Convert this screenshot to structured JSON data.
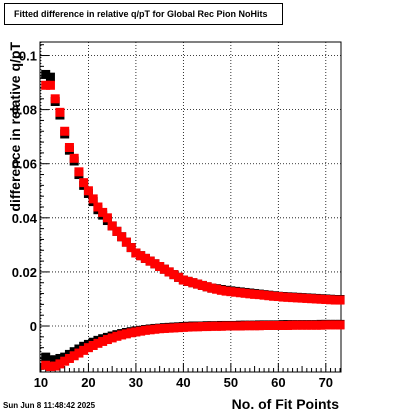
{
  "chart_data": {
    "type": "scatter",
    "title": "Fitted difference in relative q/pT for Global Rec Pion NoHits",
    "xlabel": "No. of Fit Points",
    "ylabel": "difference in relative q/pT",
    "xlim": [
      9.8,
      73.2
    ],
    "ylim": [
      -0.017,
      0.105
    ],
    "grid": true,
    "x_ticks": [
      10,
      20,
      30,
      40,
      50,
      60,
      70
    ],
    "x_tick_labels": [
      "10",
      "20",
      "30",
      "40",
      "50",
      "60",
      "70"
    ],
    "y_ticks": [
      0,
      0.02,
      0.04,
      0.06,
      0.08,
      0.1
    ],
    "y_tick_labels": [
      "0",
      "0.02",
      "0.04",
      "0.06",
      "0.08",
      "0.1"
    ],
    "series": [
      {
        "color": "#000000",
        "marker": "square",
        "x": [
          11,
          12,
          13,
          14,
          15,
          16,
          17,
          18,
          19,
          20,
          21,
          22,
          23,
          24,
          25,
          26,
          27,
          28,
          29,
          30,
          31,
          32,
          33,
          34,
          35,
          36,
          37,
          38,
          39,
          40,
          41,
          42,
          43,
          44,
          45,
          46,
          47,
          48,
          49,
          50,
          51,
          52,
          53,
          54,
          55,
          56,
          57,
          58,
          59,
          60,
          61,
          62,
          63,
          64,
          65,
          66,
          67,
          68,
          69,
          70,
          71,
          72,
          73
        ],
        "upper": [
          0.093,
          0.092,
          0.083,
          0.078,
          0.071,
          0.065,
          0.061,
          0.056,
          0.052,
          0.049,
          0.046,
          0.043,
          0.041,
          0.039,
          0.037,
          0.035,
          0.033,
          0.031,
          0.029,
          0.027,
          0.026,
          0.025,
          0.024,
          0.023,
          0.022,
          0.021,
          0.02,
          0.019,
          0.018,
          0.017,
          0.0165,
          0.016,
          0.0155,
          0.015,
          0.0145,
          0.014,
          0.0138,
          0.0135,
          0.0132,
          0.013,
          0.0128,
          0.0126,
          0.0124,
          0.0122,
          0.012,
          0.0118,
          0.0116,
          0.0114,
          0.0112,
          0.011,
          0.0109,
          0.0108,
          0.0107,
          0.0106,
          0.0105,
          0.0104,
          0.0103,
          0.0102,
          0.0101,
          0.01,
          0.0099,
          0.0098,
          0.0098
        ],
        "lower": [
          -0.0115,
          -0.0125,
          -0.0125,
          -0.012,
          -0.0115,
          -0.0105,
          -0.0095,
          -0.0085,
          -0.0075,
          -0.0068,
          -0.006,
          -0.0053,
          -0.0047,
          -0.0042,
          -0.0037,
          -0.0032,
          -0.0028,
          -0.0024,
          -0.0021,
          -0.0018,
          -0.0016,
          -0.0013,
          -0.0011,
          -0.0009,
          -0.0008,
          -0.0006,
          -0.0005,
          -0.0004,
          -0.0003,
          -0.0002,
          -0.0001,
          0,
          0,
          0,
          0.0001,
          0.0001,
          0.0001,
          0.0002,
          0.0002,
          0.0002,
          0.0002,
          0.0003,
          0.0003,
          0.0003,
          0.0003,
          0.0004,
          0.0004,
          0.0004,
          0.0004,
          0.0004,
          0.0005,
          0.0005,
          0.0005,
          0.0005,
          0.0005,
          0.0005,
          0.0005,
          0.0005,
          0.0006,
          0.0006,
          0.0006,
          0.0006,
          0.0006
        ]
      },
      {
        "color": "#ff0000",
        "marker": "square",
        "x": [
          11,
          12,
          13,
          14,
          15,
          16,
          17,
          18,
          19,
          20,
          21,
          22,
          23,
          24,
          25,
          26,
          27,
          28,
          29,
          30,
          31,
          32,
          33,
          34,
          35,
          36,
          37,
          38,
          39,
          40,
          41,
          42,
          43,
          44,
          45,
          46,
          47,
          48,
          49,
          50,
          51,
          52,
          53,
          54,
          55,
          56,
          57,
          58,
          59,
          60,
          61,
          62,
          63,
          64,
          65,
          66,
          67,
          68,
          69,
          70,
          71,
          72,
          73
        ],
        "upper": [
          0.089,
          0.089,
          0.084,
          0.079,
          0.072,
          0.066,
          0.062,
          0.057,
          0.053,
          0.05,
          0.047,
          0.044,
          0.042,
          0.04,
          0.037,
          0.035,
          0.033,
          0.031,
          0.029,
          0.027,
          0.026,
          0.025,
          0.024,
          0.023,
          0.022,
          0.021,
          0.02,
          0.019,
          0.018,
          0.017,
          0.0165,
          0.016,
          0.0155,
          0.015,
          0.0145,
          0.014,
          0.0136,
          0.0132,
          0.0129,
          0.0127,
          0.0125,
          0.0123,
          0.0121,
          0.0119,
          0.0117,
          0.0116,
          0.0114,
          0.0112,
          0.011,
          0.0109,
          0.0107,
          0.0106,
          0.0105,
          0.0104,
          0.0103,
          0.0102,
          0.0101,
          0.01,
          0.0099,
          0.0098,
          0.0097,
          0.0096,
          0.0096
        ],
        "lower": [
          -0.0145,
          -0.015,
          -0.0148,
          -0.014,
          -0.013,
          -0.012,
          -0.011,
          -0.01,
          -0.009,
          -0.008,
          -0.0072,
          -0.0064,
          -0.0057,
          -0.005,
          -0.0044,
          -0.0038,
          -0.0033,
          -0.0029,
          -0.0025,
          -0.0022,
          -0.0019,
          -0.0016,
          -0.0014,
          -0.0012,
          -0.001,
          -0.0009,
          -0.0008,
          -0.0007,
          -0.0006,
          -0.0005,
          -0.0004,
          -0.0003,
          -0.0003,
          -0.0002,
          -0.0002,
          -0.0001,
          -0.0001,
          -0.0001,
          0,
          0,
          0,
          0,
          0.0001,
          0.0001,
          0.0001,
          0.0001,
          0.0002,
          0.0002,
          0.0002,
          0.0002,
          0.0002,
          0.0002,
          0.0003,
          0.0003,
          0.0003,
          0.0003,
          0.0003,
          0.0003,
          0.0003,
          0.0004,
          0.0004,
          0.0004,
          0.0004
        ]
      }
    ]
  },
  "footer": {
    "date": "Sun Jun  8 11:48:42 2025"
  }
}
